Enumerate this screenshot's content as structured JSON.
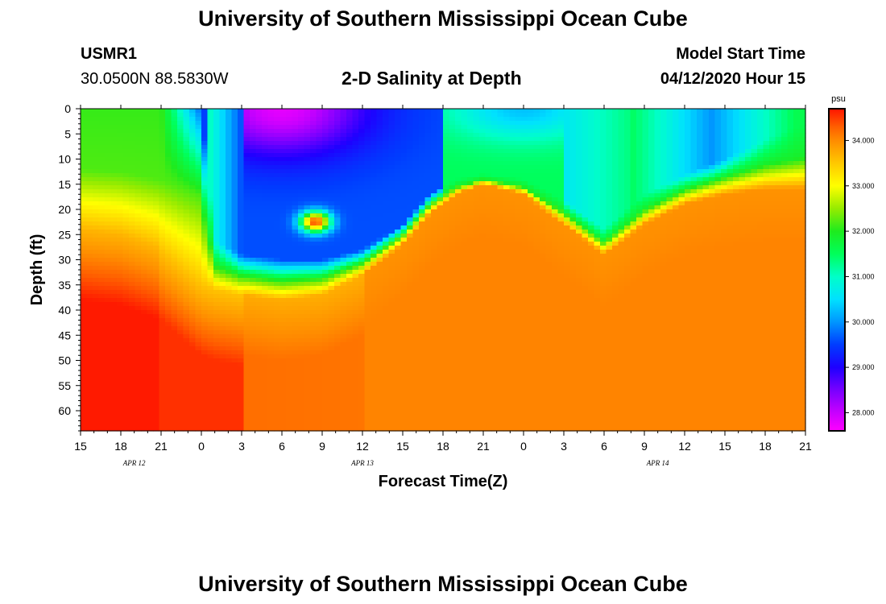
{
  "page": {
    "title_top": "University of Southern Mississippi Ocean Cube",
    "title_bottom": "University of Southern Mississippi Ocean Cube",
    "station_id": "USMR1",
    "location": "30.0500N 88.5830W",
    "plot_title": "2-D Salinity at Depth",
    "model_start_label": "Model Start Time",
    "model_start_value": "04/12/2020 Hour 15"
  },
  "chart_data": {
    "type": "heatmap",
    "title": "2-D Salinity at Depth",
    "xlabel": "Forecast Time(Z)",
    "ylabel": "Depth (ft)",
    "x_tick_labels": [
      "15",
      "18",
      "21",
      "0",
      "3",
      "6",
      "9",
      "12",
      "15",
      "18",
      "21",
      "0",
      "3",
      "6",
      "9",
      "12",
      "15",
      "18",
      "21"
    ],
    "x_range_hours": [
      0,
      54
    ],
    "day_labels": [
      {
        "text": "APR 12",
        "hour": 4
      },
      {
        "text": "APR 13",
        "hour": 21
      },
      {
        "text": "APR 14",
        "hour": 43
      }
    ],
    "y_tick_labels": [
      "0",
      "5",
      "10",
      "15",
      "20",
      "25",
      "30",
      "35",
      "40",
      "45",
      "50",
      "55",
      "60"
    ],
    "ylim": [
      0,
      64
    ],
    "y_inverted": true,
    "colorbar": {
      "unit": "psu",
      "range": [
        27.6,
        34.7
      ],
      "tick_labels": [
        "28.000",
        "29.000",
        "30.000",
        "31.000",
        "32.000",
        "33.000",
        "34.000"
      ]
    },
    "fresh_layer_profile": {
      "hours": [
        0,
        3,
        6,
        9,
        10,
        12,
        15,
        18,
        21,
        24,
        26,
        28,
        30,
        33,
        36,
        39,
        42,
        45,
        48,
        51,
        54
      ],
      "low_salinity_bottom_depth_ft": [
        0,
        0,
        0,
        0,
        26,
        29,
        30,
        30,
        28,
        23,
        17,
        14,
        13,
        14,
        18,
        24,
        17,
        13,
        10,
        6,
        3
      ],
      "halocline_depth_ft": [
        24,
        25,
        28,
        35,
        36,
        37,
        38,
        37,
        33,
        27,
        21,
        17,
        15,
        17,
        23,
        29,
        23,
        19,
        17,
        16,
        16
      ]
    },
    "features": [
      {
        "name": "surface minimum (~27.8 psu)",
        "hour": 15,
        "depth_ft": 3
      },
      {
        "name": "secondary minimum (~29 psu)",
        "hour": 47,
        "depth_ft": 4
      },
      {
        "name": "local maximum (~34.4 psu)",
        "hour": 17.5,
        "depth_ft": 22.5
      },
      {
        "name": "deep maximum (~34.7 psu)",
        "hour": 1,
        "depth_ft": 62
      }
    ]
  }
}
